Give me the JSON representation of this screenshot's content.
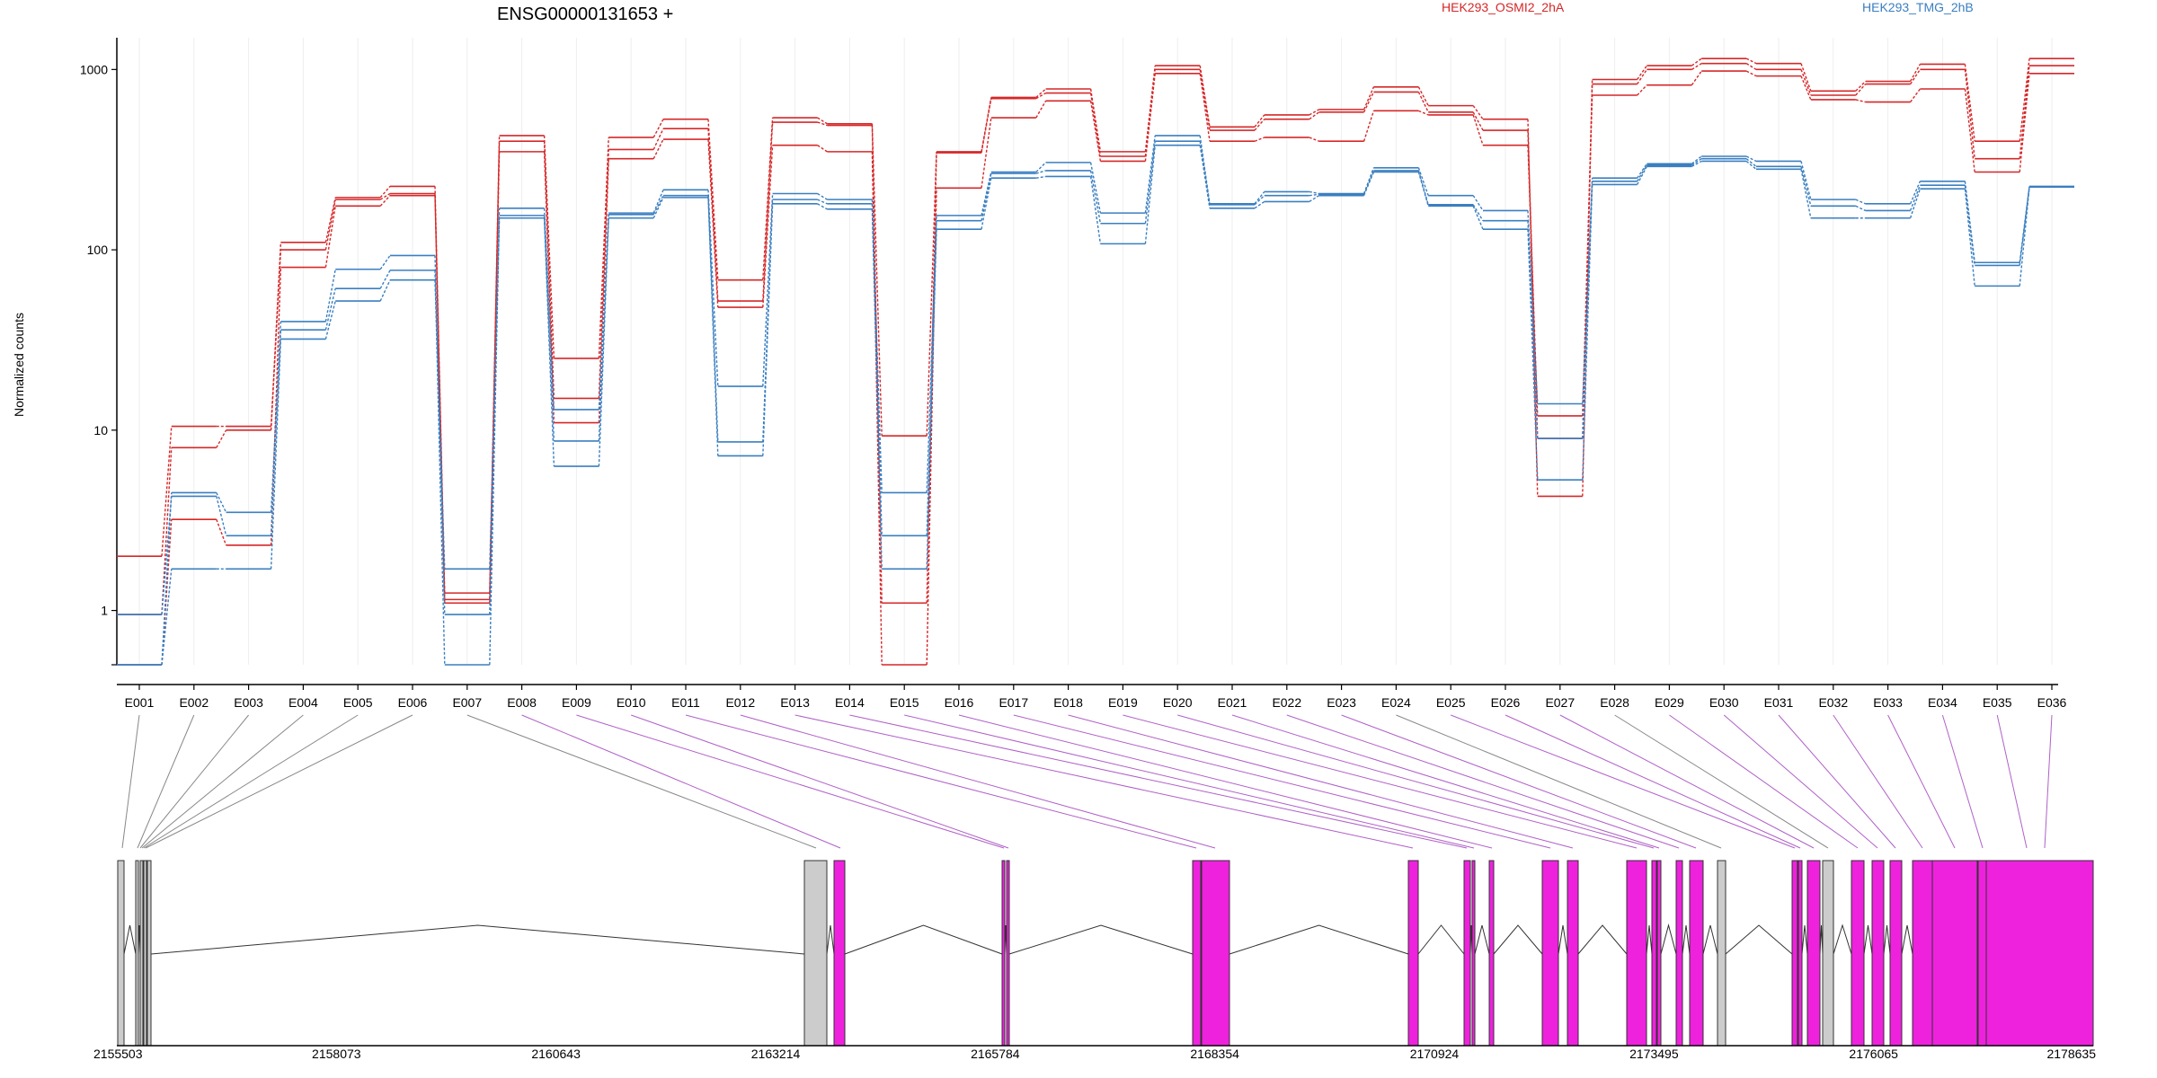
{
  "chart_data": {
    "type": "line",
    "title": "ENSG00000131653 +",
    "ylabel": "Normalized counts",
    "yscale": "log",
    "ylim": [
      0.5,
      1500
    ],
    "yticks": [
      {
        "value": 1,
        "label": "1"
      },
      {
        "value": 10,
        "label": "10"
      },
      {
        "value": 100,
        "label": "100"
      },
      {
        "value": 1000,
        "label": "1000"
      }
    ],
    "categories": [
      "E001",
      "E002",
      "E003",
      "E004",
      "E005",
      "E006",
      "E007",
      "E008",
      "E009",
      "E010",
      "E011",
      "E012",
      "E013",
      "E014",
      "E015",
      "E016",
      "E017",
      "E018",
      "E019",
      "E020",
      "E021",
      "E022",
      "E023",
      "E024",
      "E025",
      "E026",
      "E027",
      "E028",
      "E029",
      "E030",
      "E031",
      "E032",
      "E033",
      "E034",
      "E035",
      "E036"
    ],
    "legend": [
      {
        "name": "HEK293_OSMI2_2hA",
        "color": "#d62728"
      },
      {
        "name": "HEK293_TMG_2hB",
        "color": "#3a7fc0"
      }
    ],
    "series": [
      {
        "group": "HEK293_OSMI2_2hA",
        "color": "#d62728",
        "values": [
          2.0,
          10.5,
          10.5,
          110,
          195,
          225,
          1.25,
          430,
          25,
          420,
          530,
          68,
          540,
          500,
          9.3,
          350,
          700,
          780,
          350,
          1050,
          480,
          560,
          600,
          800,
          630,
          530,
          4.3,
          880,
          1050,
          1150,
          1080,
          760,
          860,
          1070,
          400,
          1150
        ]
      },
      {
        "group": "HEK293_OSMI2_2hA",
        "color": "#d62728",
        "values": [
          0.95,
          8.0,
          10.0,
          100,
          190,
          205,
          1.15,
          400,
          15,
          360,
          470,
          52,
          510,
          490,
          1.1,
          345,
          690,
          740,
          330,
          1000,
          460,
          530,
          580,
          750,
          580,
          460,
          9.0,
          830,
          1000,
          1080,
          1000,
          720,
          830,
          1000,
          320,
          1050
        ]
      },
      {
        "group": "HEK293_OSMI2_2hA",
        "color": "#d62728",
        "values": [
          0.5,
          3.2,
          2.3,
          80,
          175,
          200,
          1.1,
          350,
          11,
          320,
          410,
          48,
          380,
          350,
          0.5,
          220,
          540,
          670,
          310,
          950,
          400,
          420,
          400,
          590,
          560,
          380,
          12,
          720,
          820,
          980,
          920,
          680,
          660,
          780,
          270,
          950
        ]
      },
      {
        "group": "HEK293_TMG_2hB",
        "color": "#3a7fc0",
        "values": [
          0.5,
          4.5,
          3.5,
          40,
          78,
          93,
          0.95,
          170,
          13,
          160,
          215,
          17.5,
          205,
          190,
          4.5,
          155,
          270,
          305,
          160,
          430,
          180,
          210,
          205,
          285,
          200,
          165,
          14,
          250,
          300,
          330,
          310,
          190,
          180,
          240,
          85,
          225
        ]
      },
      {
        "group": "HEK293_TMG_2hB",
        "color": "#3a7fc0",
        "values": [
          0.95,
          4.3,
          2.6,
          36,
          61,
          77,
          0.5,
          155,
          8.7,
          157,
          200,
          8.6,
          190,
          180,
          2.6,
          145,
          265,
          275,
          140,
          400,
          178,
          200,
          203,
          275,
          178,
          145,
          9.0,
          240,
          295,
          320,
          290,
          175,
          165,
          228,
          82,
          224
        ]
      },
      {
        "group": "HEK293_TMG_2hB",
        "color": "#3a7fc0",
        "values": [
          0.5,
          1.7,
          1.7,
          32,
          52,
          68,
          1.7,
          150,
          6.3,
          150,
          195,
          7.2,
          180,
          168,
          1.7,
          130,
          250,
          255,
          108,
          380,
          170,
          185,
          200,
          270,
          175,
          130,
          5.3,
          230,
          290,
          310,
          280,
          150,
          150,
          218,
          63,
          223
        ]
      }
    ],
    "genome": {
      "axis_labels": [
        "2155503",
        "2158073",
        "2160643",
        "2163214",
        "2165784",
        "2168354",
        "2170924",
        "2173495",
        "2176065",
        "2178635"
      ],
      "exon_color": "#ee22dd",
      "inactive_color": "#cccccc"
    }
  }
}
